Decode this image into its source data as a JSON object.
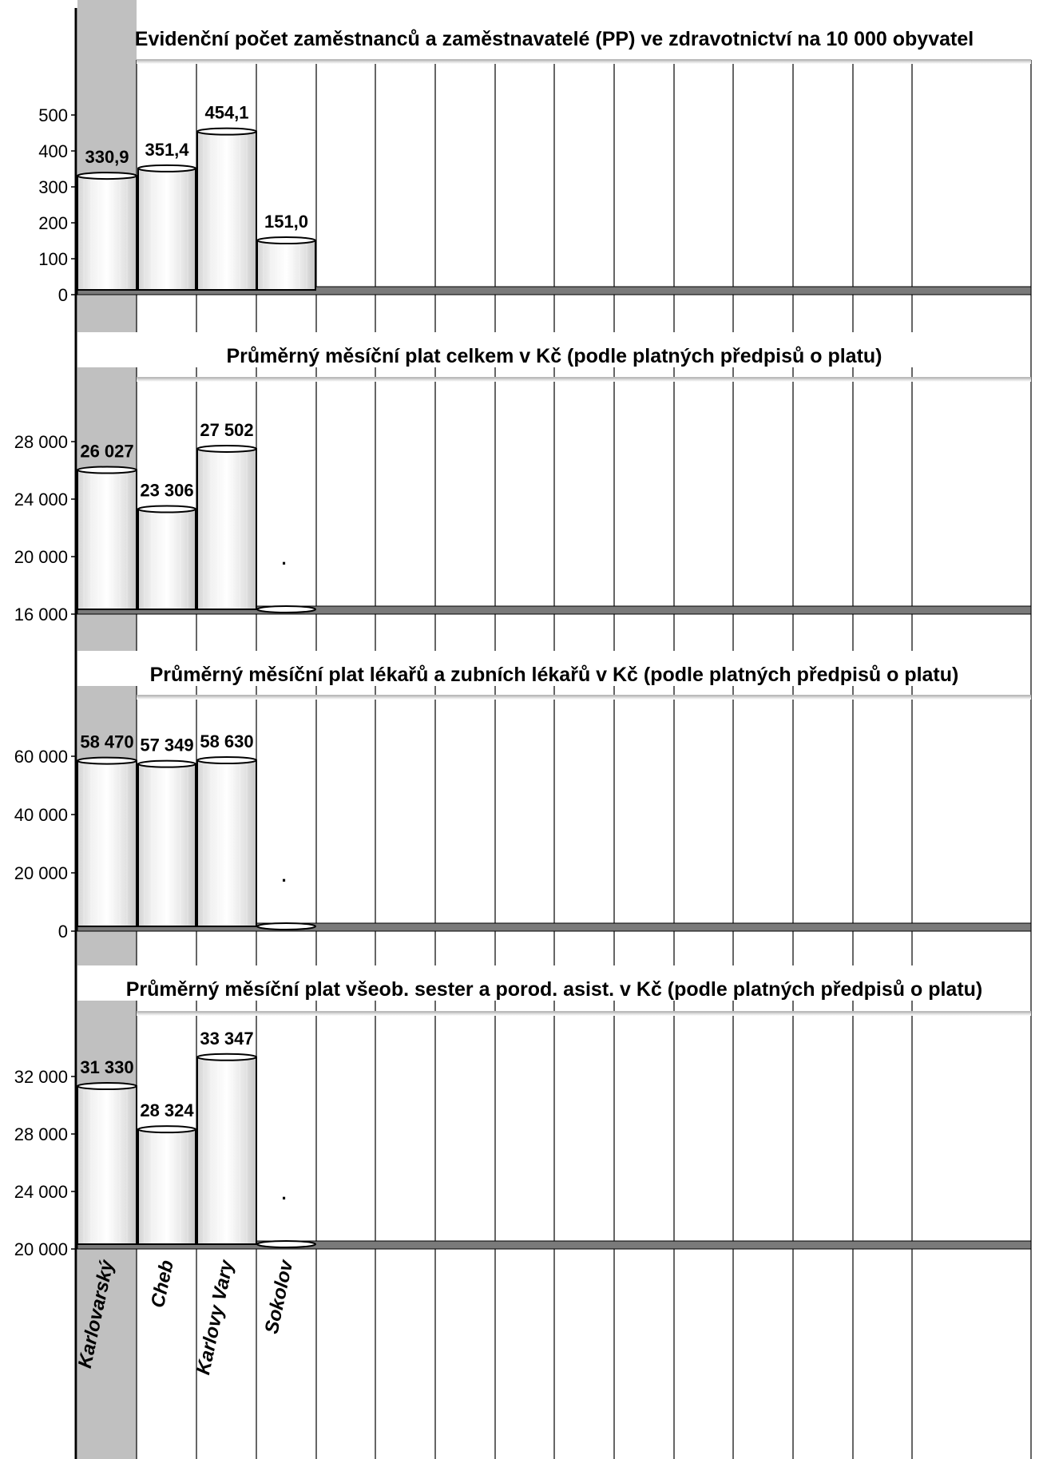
{
  "chart_data": {
    "categories": [
      "Karlovarský",
      "Cheb",
      "Karlovy Vary",
      "Sokolov"
    ],
    "colors": {
      "highlight_column": "#c0c0c0",
      "floor": "#7a7a7a",
      "bar_edge": "#000000"
    },
    "panels": [
      {
        "type": "bar",
        "title": "Evidenční počet zaměstnanců a zaměstnavatelé (PP) ve zdravotnictví na 10 000 obyvatel",
        "ylim": [
          0,
          600
        ],
        "ticks": [
          0,
          100,
          200,
          300,
          400,
          500
        ],
        "tick_labels": [
          "0",
          "100",
          "200",
          "300",
          "400",
          "500"
        ],
        "values": [
          330.9,
          351.4,
          454.1,
          151.0
        ],
        "value_labels": [
          "330,9",
          "351,4",
          "454,1",
          "151,0"
        ]
      },
      {
        "type": "bar",
        "title": "Průměrný měsíční plat celkem v Kč (podle platných předpisů o platu)",
        "ylim": [
          16000,
          31000
        ],
        "ticks": [
          16000,
          20000,
          24000,
          28000
        ],
        "tick_labels": [
          "16 000",
          "20 000",
          "24 000",
          "28 000"
        ],
        "values": [
          26027,
          23306,
          27502,
          null
        ],
        "value_labels": [
          "26 027",
          "23 306",
          "27 502",
          "."
        ]
      },
      {
        "type": "bar",
        "title": "Průměrný měsíční plat lékařů a zubních lékařů v Kč (podle platných předpisů o platu)",
        "ylim": [
          0,
          70000
        ],
        "ticks": [
          0,
          20000,
          40000,
          60000
        ],
        "tick_labels": [
          "0",
          "20 000",
          "40 000",
          "60 000"
        ],
        "values": [
          58470,
          57349,
          58630,
          null
        ],
        "value_labels": [
          "58 470",
          "57 349",
          "58 630",
          "."
        ]
      },
      {
        "type": "bar",
        "title": "Průměrný měsíční plat všeob. sester a porod. asist. v Kč (podle platných předpisů o platu)",
        "ylim": [
          20000,
          35000
        ],
        "ticks": [
          20000,
          24000,
          28000,
          32000
        ],
        "tick_labels": [
          "20 000",
          "24 000",
          "28 000",
          "32 000"
        ],
        "values": [
          31330,
          28324,
          33347,
          null
        ],
        "value_labels": [
          "31 330",
          "28 324",
          "33 347",
          "."
        ]
      }
    ]
  }
}
